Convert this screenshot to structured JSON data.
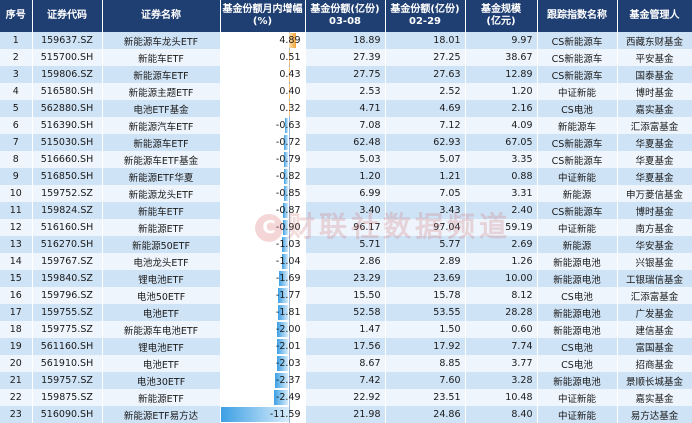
{
  "headers": {
    "seq": "序号",
    "code": "证券代码",
    "name": "证券名称",
    "change_line1": "基金份额月内增幅",
    "change_line2": "(%)",
    "shares_0308_line1": "基金份额(亿份)",
    "shares_0308_line2": "03-08",
    "shares_0229_line1": "基金份额(亿份)",
    "shares_0229_line2": "02-29",
    "scale_line1": "基金规模",
    "scale_line2": "(亿元)",
    "index": "跟踪指数名称",
    "manager": "基金管理人"
  },
  "bar_max_abs": 11.59,
  "colors": {
    "header_bg": "#1f3f73",
    "row_dark": "#cfe3f6",
    "row_light": "#eef5fc",
    "bar_positive": "#f5a53a",
    "bar_negative": "#3ca0e4"
  },
  "watermark": "财联社数据频道",
  "rows": [
    {
      "seq": "1",
      "code": "159637.SZ",
      "name": "新能源车龙头ETF",
      "change": "4.89",
      "change_value": 4.89,
      "shares_0308": "18.89",
      "shares_0229": "18.01",
      "scale": "9.97",
      "index": "CS新能源车",
      "manager": "西藏东财基金"
    },
    {
      "seq": "2",
      "code": "515700.SH",
      "name": "新能车ETF",
      "change": "0.51",
      "change_value": 0.51,
      "shares_0308": "27.39",
      "shares_0229": "27.25",
      "scale": "38.67",
      "index": "CS新能源车",
      "manager": "平安基金"
    },
    {
      "seq": "3",
      "code": "159806.SZ",
      "name": "新能源车ETF",
      "change": "0.43",
      "change_value": 0.43,
      "shares_0308": "27.75",
      "shares_0229": "27.63",
      "scale": "12.89",
      "index": "CS新能源车",
      "manager": "国泰基金"
    },
    {
      "seq": "4",
      "code": "516580.SH",
      "name": "新能源主题ETF",
      "change": "0.40",
      "change_value": 0.4,
      "shares_0308": "2.53",
      "shares_0229": "2.52",
      "scale": "1.20",
      "index": "中证新能",
      "manager": "博时基金"
    },
    {
      "seq": "5",
      "code": "562880.SH",
      "name": "电池ETF基金",
      "change": "0.32",
      "change_value": 0.32,
      "shares_0308": "4.71",
      "shares_0229": "4.69",
      "scale": "2.16",
      "index": "CS电池",
      "manager": "嘉实基金"
    },
    {
      "seq": "6",
      "code": "516390.SH",
      "name": "新能源汽车ETF",
      "change": "-0.63",
      "change_value": -0.63,
      "shares_0308": "7.08",
      "shares_0229": "7.12",
      "scale": "4.09",
      "index": "新能源车",
      "manager": "汇添富基金"
    },
    {
      "seq": "7",
      "code": "515030.SH",
      "name": "新能源车ETF",
      "change": "-0.72",
      "change_value": -0.72,
      "shares_0308": "62.48",
      "shares_0229": "62.93",
      "scale": "67.05",
      "index": "CS新能源车",
      "manager": "华夏基金"
    },
    {
      "seq": "8",
      "code": "516660.SH",
      "name": "新能源车ETF基金",
      "change": "-0.79",
      "change_value": -0.79,
      "shares_0308": "5.03",
      "shares_0229": "5.07",
      "scale": "3.35",
      "index": "CS新能源车",
      "manager": "华夏基金"
    },
    {
      "seq": "9",
      "code": "516850.SH",
      "name": "新能源ETF华夏",
      "change": "-0.82",
      "change_value": -0.82,
      "shares_0308": "1.20",
      "shares_0229": "1.21",
      "scale": "0.88",
      "index": "中证新能",
      "manager": "华夏基金"
    },
    {
      "seq": "10",
      "code": "159752.SZ",
      "name": "新能源龙头ETF",
      "change": "-0.85",
      "change_value": -0.85,
      "shares_0308": "6.99",
      "shares_0229": "7.05",
      "scale": "3.31",
      "index": "新能源",
      "manager": "申万菱信基金"
    },
    {
      "seq": "11",
      "code": "159824.SZ",
      "name": "新能车ETF",
      "change": "-0.87",
      "change_value": -0.87,
      "shares_0308": "3.40",
      "shares_0229": "3.43",
      "scale": "2.40",
      "index": "CS新能源车",
      "manager": "博时基金"
    },
    {
      "seq": "12",
      "code": "516160.SH",
      "name": "新能源ETF",
      "change": "-0.90",
      "change_value": -0.9,
      "shares_0308": "96.17",
      "shares_0229": "97.04",
      "scale": "59.19",
      "index": "中证新能",
      "manager": "南方基金"
    },
    {
      "seq": "13",
      "code": "516270.SH",
      "name": "新能源50ETF",
      "change": "-1.03",
      "change_value": -1.03,
      "shares_0308": "5.71",
      "shares_0229": "5.77",
      "scale": "2.69",
      "index": "新能源",
      "manager": "华安基金"
    },
    {
      "seq": "14",
      "code": "159767.SZ",
      "name": "电池龙头ETF",
      "change": "-1.04",
      "change_value": -1.04,
      "shares_0308": "2.86",
      "shares_0229": "2.89",
      "scale": "1.26",
      "index": "新能源电池",
      "manager": "兴银基金"
    },
    {
      "seq": "15",
      "code": "159840.SZ",
      "name": "锂电池ETF",
      "change": "-1.69",
      "change_value": -1.69,
      "shares_0308": "23.29",
      "shares_0229": "23.69",
      "scale": "10.00",
      "index": "新能源电池",
      "manager": "工银瑞信基金"
    },
    {
      "seq": "16",
      "code": "159796.SZ",
      "name": "电池50ETF",
      "change": "-1.77",
      "change_value": -1.77,
      "shares_0308": "15.50",
      "shares_0229": "15.78",
      "scale": "8.12",
      "index": "CS电池",
      "manager": "汇添富基金"
    },
    {
      "seq": "17",
      "code": "159755.SZ",
      "name": "电池ETF",
      "change": "-1.81",
      "change_value": -1.81,
      "shares_0308": "52.58",
      "shares_0229": "53.55",
      "scale": "28.28",
      "index": "新能源电池",
      "manager": "广发基金"
    },
    {
      "seq": "18",
      "code": "159775.SZ",
      "name": "新能源车电池ETF",
      "change": "-2.00",
      "change_value": -2.0,
      "shares_0308": "1.47",
      "shares_0229": "1.50",
      "scale": "0.60",
      "index": "新能源电池",
      "manager": "建信基金"
    },
    {
      "seq": "19",
      "code": "561160.SH",
      "name": "锂电池ETF",
      "change": "-2.01",
      "change_value": -2.01,
      "shares_0308": "17.56",
      "shares_0229": "17.92",
      "scale": "7.74",
      "index": "CS电池",
      "manager": "富国基金"
    },
    {
      "seq": "20",
      "code": "561910.SH",
      "name": "电池ETF",
      "change": "-2.03",
      "change_value": -2.03,
      "shares_0308": "8.67",
      "shares_0229": "8.85",
      "scale": "3.77",
      "index": "CS电池",
      "manager": "招商基金"
    },
    {
      "seq": "21",
      "code": "159757.SZ",
      "name": "电池30ETF",
      "change": "-2.37",
      "change_value": -2.37,
      "shares_0308": "7.42",
      "shares_0229": "7.60",
      "scale": "3.28",
      "index": "新能源电池",
      "manager": "景顺长城基金"
    },
    {
      "seq": "22",
      "code": "159875.SZ",
      "name": "新能源ETF",
      "change": "-2.49",
      "change_value": -2.49,
      "shares_0308": "22.92",
      "shares_0229": "23.51",
      "scale": "10.48",
      "index": "中证新能",
      "manager": "嘉实基金"
    },
    {
      "seq": "23",
      "code": "516090.SH",
      "name": "新能源ETF易方达",
      "change": "-11.59",
      "change_value": -11.59,
      "shares_0308": "21.98",
      "shares_0229": "24.86",
      "scale": "8.40",
      "index": "中证新能",
      "manager": "易方达基金"
    }
  ]
}
